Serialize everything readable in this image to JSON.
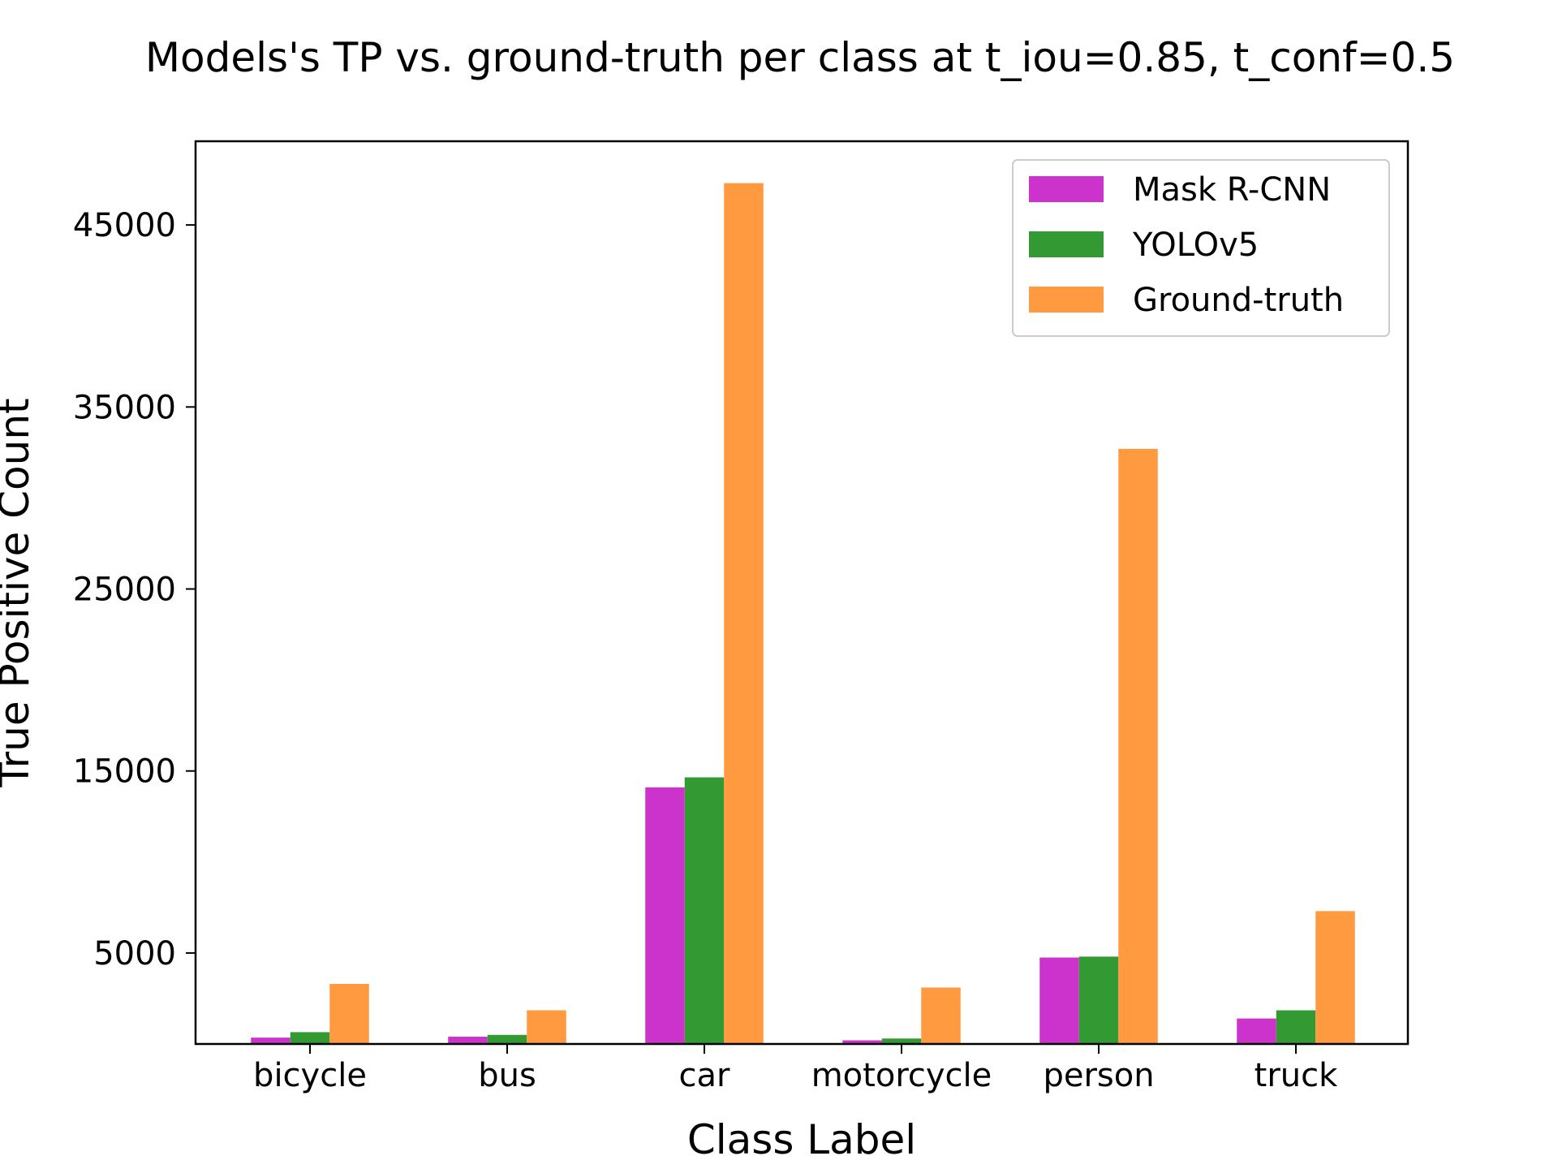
{
  "chart_data": {
    "type": "bar",
    "title": "Models's TP vs. ground-truth per class at t_iou=0.85, t_conf=0.5",
    "xlabel": "Class Label",
    "ylabel": "True Positive Count",
    "categories": [
      "bicycle",
      "bus",
      "car",
      "motorcycle",
      "person",
      "truck"
    ],
    "series": [
      {
        "name": "Mask R-CNN",
        "color": "#cc33cc",
        "values": [
          350,
          400,
          14100,
          200,
          4750,
          1400
        ]
      },
      {
        "name": "YOLOv5",
        "color": "#339933",
        "values": [
          650,
          500,
          14650,
          300,
          4800,
          1850
        ]
      },
      {
        "name": "Ground-truth",
        "color": "#ff9a40",
        "values": [
          3300,
          1850,
          47300,
          3100,
          32700,
          7300
        ]
      }
    ],
    "yticks": [
      5000,
      15000,
      25000,
      35000,
      45000
    ],
    "ylim": [
      0,
      49600
    ],
    "grid": false,
    "legend_position": "top-right"
  }
}
